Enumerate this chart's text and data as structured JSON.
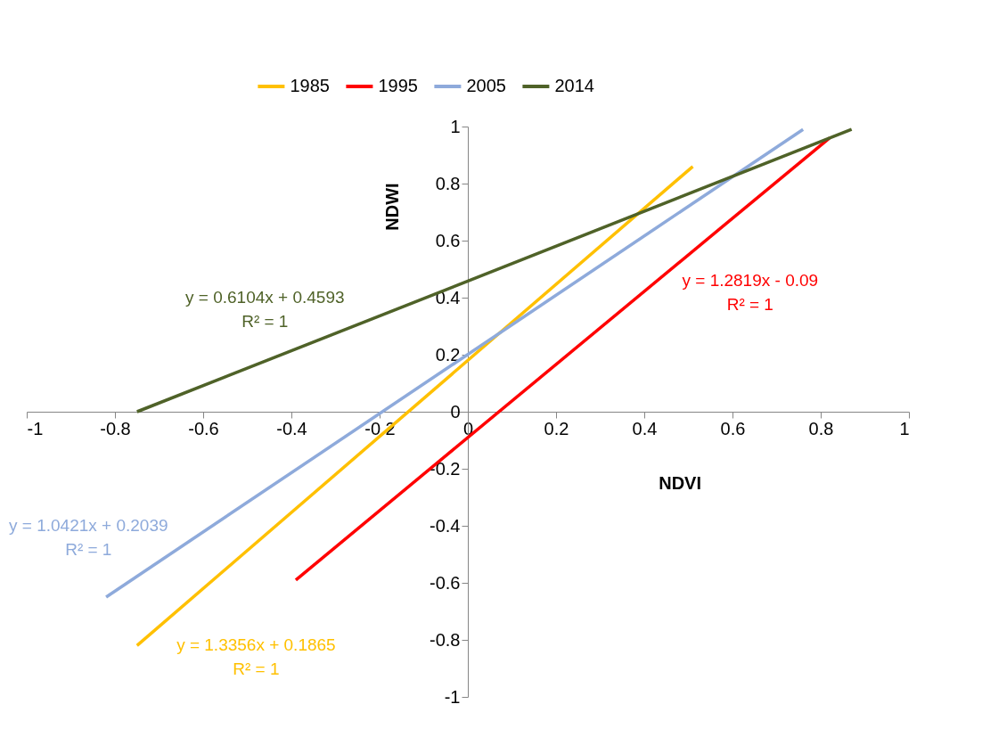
{
  "chart_data": {
    "type": "line",
    "xlabel": "NDVI",
    "ylabel": "NDWI",
    "xlim": [
      -1,
      1
    ],
    "ylim": [
      -1,
      1
    ],
    "xticks": [
      -1,
      -0.8,
      -0.6,
      -0.4,
      -0.2,
      0,
      0.2,
      0.4,
      0.6,
      0.8,
      1
    ],
    "yticks": [
      -1,
      -0.8,
      -0.6,
      -0.4,
      -0.2,
      0,
      0.2,
      0.4,
      0.6,
      0.8,
      1
    ],
    "grid": false,
    "legend": "top",
    "marker": "none",
    "line_style": "solid",
    "series": [
      {
        "name": "1985",
        "color": "#ffc000",
        "x": [
          -0.75,
          0.51
        ],
        "values": [
          -0.82,
          0.86
        ]
      },
      {
        "name": "1995",
        "color": "#ff0000",
        "x": [
          -0.39,
          0.82
        ],
        "values": [
          -0.59,
          0.96
        ]
      },
      {
        "name": "2005",
        "color": "#8eaadb",
        "x": [
          -0.82,
          0.76
        ],
        "values": [
          -0.65,
          0.99
        ]
      },
      {
        "name": "2014",
        "color": "#4f6228",
        "x": [
          -0.75,
          0.87
        ],
        "values": [
          0,
          0.99
        ]
      }
    ],
    "annotations": [
      "y = 1.3356x + 0.1865\nR² = 1",
      "y = 1.2819x - 0.09\nR² = 1",
      "y = 1.0421x + 0.2039\nR² = 1",
      "y = 0.6104x + 0.4593\nR² = 1"
    ]
  }
}
